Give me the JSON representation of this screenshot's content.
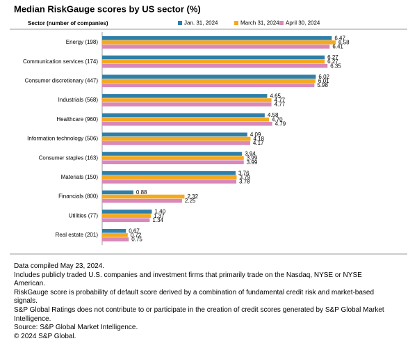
{
  "chart_data": {
    "type": "bar",
    "orientation": "horizontal",
    "title": "Median RiskGauge scores by US sector (%)",
    "category_axis_label": "Sector (number of companies)",
    "categories": [
      "Energy (198)",
      "Communication services (174)",
      "Consumer discretionary (447)",
      "Industrials (568)",
      "Healthcare (960)",
      "Information technology (506)",
      "Consumer staples (163)",
      "Materials (150)",
      "Financials (800)",
      "Utilities (77)",
      "Real estate (201)"
    ],
    "series": [
      {
        "name": "Jan. 31, 2024",
        "color": "#2f7fa8",
        "values": [
          6.47,
          6.27,
          6.02,
          4.65,
          4.58,
          4.09,
          3.94,
          3.76,
          0.88,
          1.4,
          0.67
        ],
        "value_labels": [
          "6.47",
          "6.27",
          "6.02",
          "4.65",
          "4.58",
          "4.09",
          "3.94",
          "3.76",
          "0.88",
          "1.40",
          "0.67"
        ]
      },
      {
        "name": "March 31, 2024",
        "color": "#f5a91f",
        "values": [
          6.58,
          6.27,
          6.01,
          4.77,
          4.7,
          4.18,
          3.99,
          3.79,
          2.32,
          1.37,
          0.72
        ],
        "value_labels": [
          "6.58",
          "6.27",
          "6.01",
          "4.77",
          "4.70",
          "4.18",
          "3.99",
          "3.79",
          "2.32",
          "1.37",
          "0.72"
        ]
      },
      {
        "name": "April 30, 2024",
        "color": "#d988b8",
        "values": [
          6.41,
          6.35,
          5.98,
          4.77,
          4.79,
          4.17,
          3.99,
          3.78,
          2.25,
          1.34,
          0.75
        ],
        "value_labels": [
          "6.41",
          "6.35",
          "5.98",
          "4.77",
          "4.79",
          "4.17",
          "3.99",
          "3.78",
          "2.25",
          "1.34",
          "0.75"
        ]
      }
    ],
    "notes": [
      "Data compiled May 23, 2024.",
      "Includes publicly traded U.S. companies and investment firms that primarily trade on the Nasdaq, NYSE or NYSE American.",
      "RiskGauge score is probability of default score derived by a combination of fundamental credit risk and market-based signals.",
      "S&P Global Ratings does not contribute to or participate in the creation of credit scores generated by S&P Global Market Intelligence.",
      "Source: S&P Global Market Intelligence.",
      "© 2024 S&P Global."
    ]
  }
}
